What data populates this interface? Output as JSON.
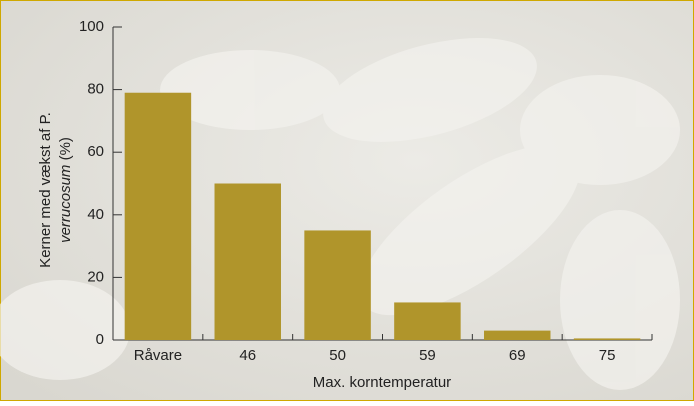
{
  "chart_data": {
    "type": "bar",
    "y_label": [
      "Kerner med vækst af P.",
      "verrucosum",
      "(%)"
    ],
    "x_label": "Max. korntemperatur",
    "categories": [
      "Råvare",
      "46",
      "50",
      "59",
      "69",
      "75"
    ],
    "values": [
      79,
      50,
      35,
      12,
      3,
      0.5
    ],
    "color": "#b0952b",
    "ylim": [
      0,
      100
    ],
    "yticks": [
      0,
      20,
      40,
      60,
      80,
      100
    ],
    "grid": false
  }
}
